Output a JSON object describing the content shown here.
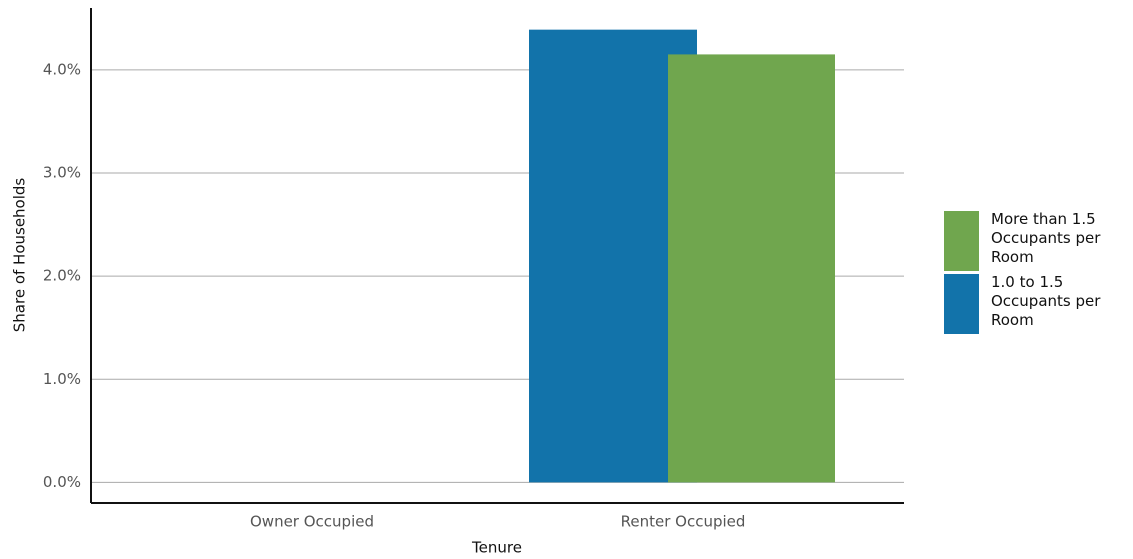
{
  "chart_data": {
    "type": "bar",
    "x_label": "Tenure",
    "y_label": "Share of Households",
    "categories": [
      "Owner Occupied",
      "Renter Occupied"
    ],
    "series": [
      {
        "name": "1.0 to 1.5 Occupants per Room",
        "color": "#1273aa",
        "values": [
          0,
          4.39
        ]
      },
      {
        "name": "More than 1.5 Occupants per Room",
        "color": "#70a64e",
        "values": [
          0,
          4.15
        ]
      }
    ],
    "ylim": [
      -0.2,
      4.6
    ],
    "yticks": [
      {
        "value": 0,
        "label": "0.0%"
      },
      {
        "value": 1,
        "label": "1.0%"
      },
      {
        "value": 2,
        "label": "2.0%"
      },
      {
        "value": 3,
        "label": "3.0%"
      },
      {
        "value": 4,
        "label": "4.0%"
      }
    ],
    "grid": true
  }
}
